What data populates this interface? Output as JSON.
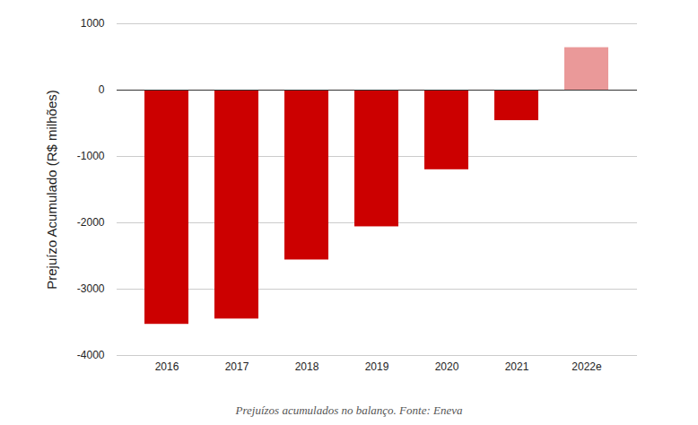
{
  "chart_data": {
    "type": "bar",
    "y_label": "Prejuízo Acumulado (R$ milhões)",
    "caption": "Prejuízos acumulados no balanço. Fonte: Eneva",
    "categories": [
      "2016",
      "2017",
      "2018",
      "2019",
      "2020",
      "2021",
      "2022e"
    ],
    "values": [
      -3530,
      -3450,
      -2560,
      -2060,
      -1200,
      -460,
      640
    ],
    "colors": [
      "#cc0000",
      "#cc0000",
      "#cc0000",
      "#cc0000",
      "#cc0000",
      "#cc0000",
      "#ea9999"
    ],
    "ylim": [
      -4000,
      1000
    ],
    "yticks": [
      -4000,
      -3000,
      -2000,
      -1000,
      0,
      1000
    ],
    "grid": true
  }
}
